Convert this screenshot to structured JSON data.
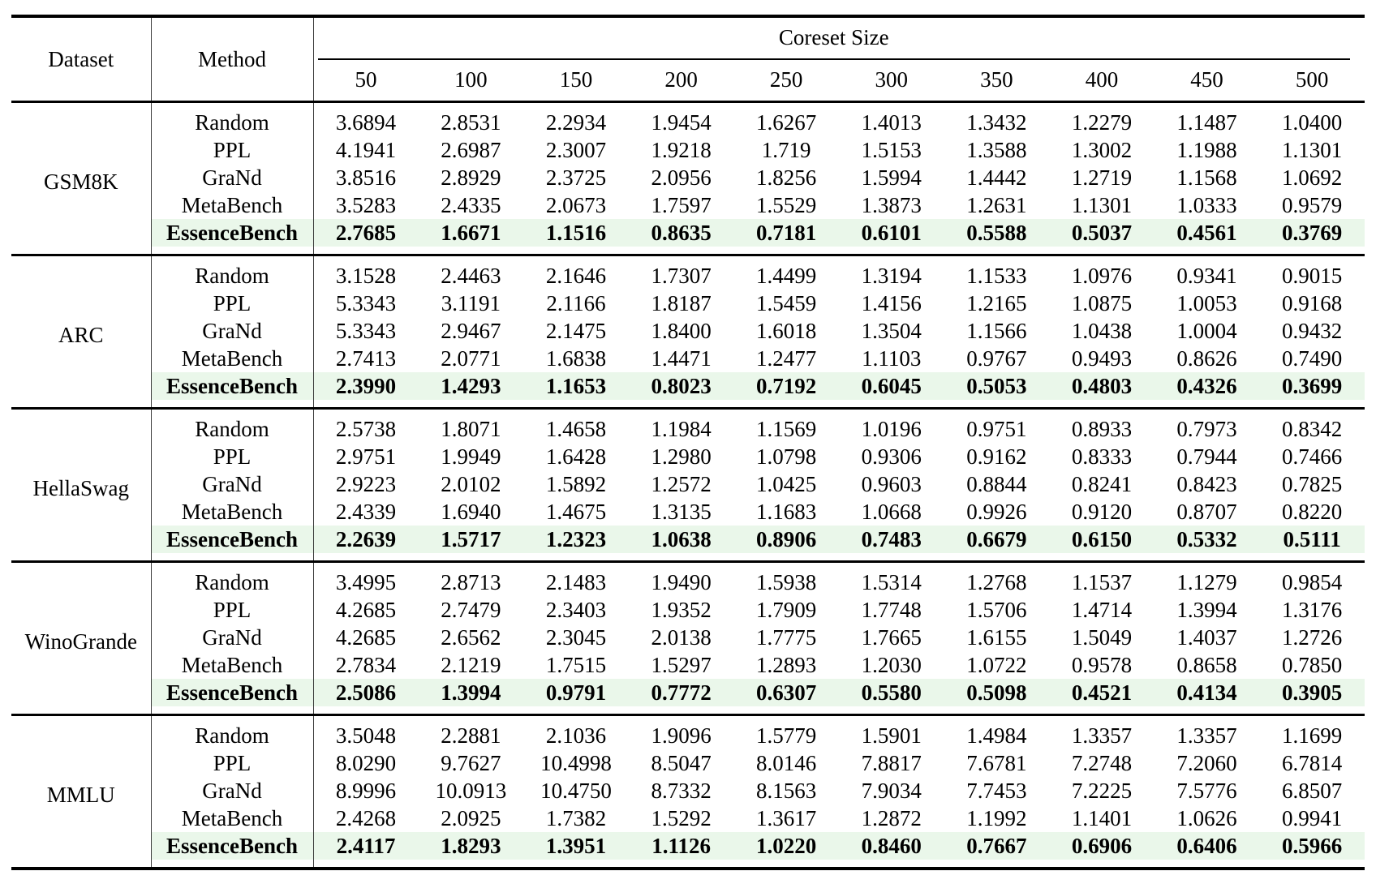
{
  "table": {
    "header": {
      "dataset": "Dataset",
      "method": "Method",
      "coreset_size": "Coreset Size",
      "sizes": [
        "50",
        "100",
        "150",
        "200",
        "250",
        "300",
        "350",
        "400",
        "450",
        "500"
      ]
    },
    "highlight_color": "#eaf7ea",
    "blocks": [
      {
        "dataset": "GSM8K",
        "rows": [
          {
            "method": "Random",
            "highlight": false,
            "values": [
              "3.6894",
              "2.8531",
              "2.2934",
              "1.9454",
              "1.6267",
              "1.4013",
              "1.3432",
              "1.2279",
              "1.1487",
              "1.0400"
            ]
          },
          {
            "method": "PPL",
            "highlight": false,
            "values": [
              "4.1941",
              "2.6987",
              "2.3007",
              "1.9218",
              "1.719",
              "1.5153",
              "1.3588",
              "1.3002",
              "1.1988",
              "1.1301"
            ]
          },
          {
            "method": "GraNd",
            "highlight": false,
            "values": [
              "3.8516",
              "2.8929",
              "2.3725",
              "2.0956",
              "1.8256",
              "1.5994",
              "1.4442",
              "1.2719",
              "1.1568",
              "1.0692"
            ]
          },
          {
            "method": "MetaBench",
            "highlight": false,
            "values": [
              "3.5283",
              "2.4335",
              "2.0673",
              "1.7597",
              "1.5529",
              "1.3873",
              "1.2631",
              "1.1301",
              "1.0333",
              "0.9579"
            ]
          },
          {
            "method": "EssenceBench",
            "highlight": true,
            "values": [
              "2.7685",
              "1.6671",
              "1.1516",
              "0.8635",
              "0.7181",
              "0.6101",
              "0.5588",
              "0.5037",
              "0.4561",
              "0.3769"
            ]
          }
        ]
      },
      {
        "dataset": "ARC",
        "rows": [
          {
            "method": "Random",
            "highlight": false,
            "values": [
              "3.1528",
              "2.4463",
              "2.1646",
              "1.7307",
              "1.4499",
              "1.3194",
              "1.1533",
              "1.0976",
              "0.9341",
              "0.9015"
            ]
          },
          {
            "method": "PPL",
            "highlight": false,
            "values": [
              "5.3343",
              "3.1191",
              "2.1166",
              "1.8187",
              "1.5459",
              "1.4156",
              "1.2165",
              "1.0875",
              "1.0053",
              "0.9168"
            ]
          },
          {
            "method": "GraNd",
            "highlight": false,
            "values": [
              "5.3343",
              "2.9467",
              "2.1475",
              "1.8400",
              "1.6018",
              "1.3504",
              "1.1566",
              "1.0438",
              "1.0004",
              "0.9432"
            ]
          },
          {
            "method": "MetaBench",
            "highlight": false,
            "values": [
              "2.7413",
              "2.0771",
              "1.6838",
              "1.4471",
              "1.2477",
              "1.1103",
              "0.9767",
              "0.9493",
              "0.8626",
              "0.7490"
            ]
          },
          {
            "method": "EssenceBench",
            "highlight": true,
            "values": [
              "2.3990",
              "1.4293",
              "1.1653",
              "0.8023",
              "0.7192",
              "0.6045",
              "0.5053",
              "0.4803",
              "0.4326",
              "0.3699"
            ]
          }
        ]
      },
      {
        "dataset": "HellaSwag",
        "rows": [
          {
            "method": "Random",
            "highlight": false,
            "values": [
              "2.5738",
              "1.8071",
              "1.4658",
              "1.1984",
              "1.1569",
              "1.0196",
              "0.9751",
              "0.8933",
              "0.7973",
              "0.8342"
            ]
          },
          {
            "method": "PPL",
            "highlight": false,
            "values": [
              "2.9751",
              "1.9949",
              "1.6428",
              "1.2980",
              "1.0798",
              "0.9306",
              "0.9162",
              "0.8333",
              "0.7944",
              "0.7466"
            ]
          },
          {
            "method": "GraNd",
            "highlight": false,
            "values": [
              "2.9223",
              "2.0102",
              "1.5892",
              "1.2572",
              "1.0425",
              "0.9603",
              "0.8844",
              "0.8241",
              "0.8423",
              "0.7825"
            ]
          },
          {
            "method": "MetaBench",
            "highlight": false,
            "values": [
              "2.4339",
              "1.6940",
              "1.4675",
              "1.3135",
              "1.1683",
              "1.0668",
              "0.9926",
              "0.9120",
              "0.8707",
              "0.8220"
            ]
          },
          {
            "method": "EssenceBench",
            "highlight": true,
            "values": [
              "2.2639",
              "1.5717",
              "1.2323",
              "1.0638",
              "0.8906",
              "0.7483",
              "0.6679",
              "0.6150",
              "0.5332",
              "0.5111"
            ]
          }
        ]
      },
      {
        "dataset": "WinoGrande",
        "rows": [
          {
            "method": "Random",
            "highlight": false,
            "values": [
              "3.4995",
              "2.8713",
              "2.1483",
              "1.9490",
              "1.5938",
              "1.5314",
              "1.2768",
              "1.1537",
              "1.1279",
              "0.9854"
            ]
          },
          {
            "method": "PPL",
            "highlight": false,
            "values": [
              "4.2685",
              "2.7479",
              "2.3403",
              "1.9352",
              "1.7909",
              "1.7748",
              "1.5706",
              "1.4714",
              "1.3994",
              "1.3176"
            ]
          },
          {
            "method": "GraNd",
            "highlight": false,
            "values": [
              "4.2685",
              "2.6562",
              "2.3045",
              "2.0138",
              "1.7775",
              "1.7665",
              "1.6155",
              "1.5049",
              "1.4037",
              "1.2726"
            ]
          },
          {
            "method": "MetaBench",
            "highlight": false,
            "values": [
              "2.7834",
              "2.1219",
              "1.7515",
              "1.5297",
              "1.2893",
              "1.2030",
              "1.0722",
              "0.9578",
              "0.8658",
              "0.7850"
            ]
          },
          {
            "method": "EssenceBench",
            "highlight": true,
            "values": [
              "2.5086",
              "1.3994",
              "0.9791",
              "0.7772",
              "0.6307",
              "0.5580",
              "0.5098",
              "0.4521",
              "0.4134",
              "0.3905"
            ]
          }
        ]
      },
      {
        "dataset": "MMLU",
        "rows": [
          {
            "method": "Random",
            "highlight": false,
            "values": [
              "3.5048",
              "2.2881",
              "2.1036",
              "1.9096",
              "1.5779",
              "1.5901",
              "1.4984",
              "1.3357",
              "1.3357",
              "1.1699"
            ]
          },
          {
            "method": "PPL",
            "highlight": false,
            "values": [
              "8.0290",
              "9.7627",
              "10.4998",
              "8.5047",
              "8.0146",
              "7.8817",
              "7.6781",
              "7.2748",
              "7.2060",
              "6.7814"
            ]
          },
          {
            "method": "GraNd",
            "highlight": false,
            "values": [
              "8.9996",
              "10.0913",
              "10.4750",
              "8.7332",
              "8.1563",
              "7.9034",
              "7.7453",
              "7.2225",
              "7.5776",
              "6.8507"
            ]
          },
          {
            "method": "MetaBench",
            "highlight": false,
            "values": [
              "2.4268",
              "2.0925",
              "1.7382",
              "1.5292",
              "1.3617",
              "1.2872",
              "1.1992",
              "1.1401",
              "1.0626",
              "0.9941"
            ]
          },
          {
            "method": "EssenceBench",
            "highlight": true,
            "values": [
              "2.4117",
              "1.8293",
              "1.3951",
              "1.1126",
              "1.0220",
              "0.8460",
              "0.7667",
              "0.6906",
              "0.6406",
              "0.5966"
            ]
          }
        ]
      }
    ]
  }
}
